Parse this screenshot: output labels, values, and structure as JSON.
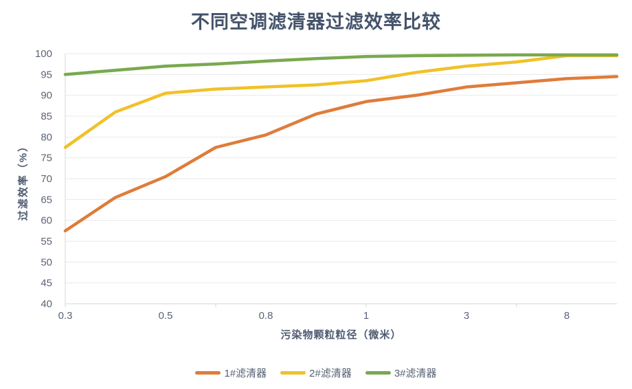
{
  "title": "不同空调滤清器过滤效率比较",
  "chart_data": {
    "type": "line",
    "title": "不同空调滤清器过滤效率比较",
    "xlabel": "污染物颗粒粒径（微米）",
    "ylabel": "过滤效率（%）",
    "ylim": [
      40,
      100
    ],
    "yticks": [
      40,
      45,
      50,
      55,
      60,
      65,
      70,
      75,
      80,
      85,
      90,
      95,
      100
    ],
    "n_points": 12,
    "x_tick_labels": [
      "0.3",
      "0.5",
      "0.8",
      "1",
      "3",
      "8"
    ],
    "x_label_indices": [
      0,
      2,
      4,
      6,
      8,
      10
    ],
    "x_tickmark_indices": [
      0,
      3,
      6,
      9
    ],
    "grid": true,
    "legend_position": "bottom",
    "series": [
      {
        "name": "1#滤清器",
        "color": "#DF7C3A",
        "values": [
          57.5,
          65.5,
          70.5,
          77.5,
          80.5,
          85.5,
          88.5,
          90,
          92,
          93,
          94,
          94.5
        ]
      },
      {
        "name": "2#滤清器",
        "color": "#F1C127",
        "values": [
          77.5,
          86,
          90.5,
          91.5,
          92,
          92.5,
          93.5,
          95.5,
          97,
          98,
          99.5,
          99.5
        ]
      },
      {
        "name": "3#滤清器",
        "color": "#79A94F",
        "values": [
          95,
          96,
          97,
          97.5,
          98.2,
          98.8,
          99.3,
          99.5,
          99.6,
          99.7,
          99.7,
          99.7
        ]
      }
    ],
    "style": {
      "grid_color": "#E9E9E9",
      "axis_color": "#D6D6D6",
      "tick_label_color": "#5A6577",
      "line_width": 4.5
    }
  }
}
